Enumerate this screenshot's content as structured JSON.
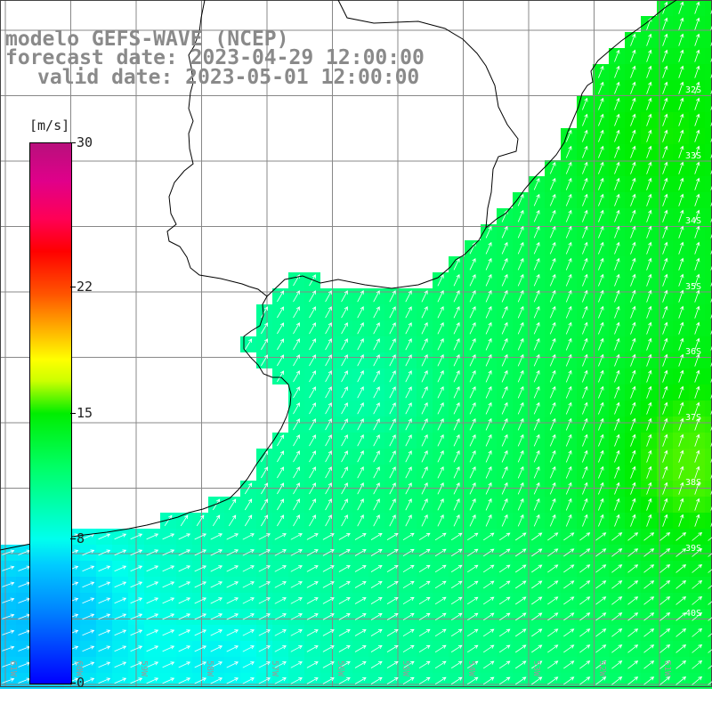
{
  "title": {
    "line1": "modelo GEFS-WAVE (NCEP)",
    "line2": "forecast date: 2023-04-29 12:00:00",
    "line3": "valid date: 2023-05-01 12:00:00"
  },
  "colorbar": {
    "unit": "[m/s]",
    "ticks": [
      "30",
      "22",
      "15",
      "8",
      "0"
    ],
    "tick_values": [
      30,
      22,
      15,
      8,
      0
    ],
    "range": [
      0,
      30
    ],
    "colors": [
      "#0000ff",
      "#00ccff",
      "#00ff66",
      "#ffff00",
      "#ff0000",
      "#b8107c"
    ]
  },
  "map": {
    "lon_labels": [
      "61W",
      "60W",
      "59W",
      "58W",
      "57W",
      "56W",
      "55W",
      "54W",
      "53W",
      "52W",
      "51W"
    ],
    "lat_labels": [
      "32S",
      "33S",
      "34S",
      "35S",
      "36S",
      "37S",
      "38S",
      "39S",
      "40S"
    ],
    "land_color": "#ffffff",
    "grid_color": "#888888",
    "coast_color": "#000000",
    "arrow_color": "#ffffff"
  }
}
